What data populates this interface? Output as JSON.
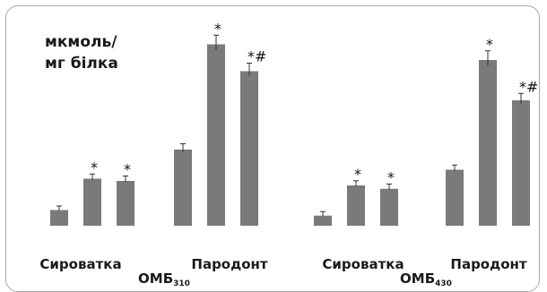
{
  "chart_data": {
    "type": "bar",
    "unit_label": [
      "мкмоль/",
      "мг білка"
    ],
    "series_groups": [
      {
        "group_label": "ОМБ",
        "group_subscript": "310",
        "categories": [
          {
            "label": "Сироватка",
            "values": [
              0.7,
              2.1,
              2.0
            ],
            "errors": [
              0.02,
              0.05,
              0.06
            ],
            "markers": [
              "",
              "*",
              "*"
            ]
          },
          {
            "label": "Пародонт",
            "values": [
              3.4,
              8.1,
              6.9
            ],
            "errors": [
              0.1,
              0.25,
              0.2
            ],
            "markers": [
              "",
              "*",
              "*#"
            ]
          }
        ]
      },
      {
        "group_label": "ОМБ",
        "group_subscript": "430",
        "categories": [
          {
            "label": "Сироватка",
            "values": [
              0.45,
              1.8,
              1.65
            ],
            "errors": [
              0.02,
              0.05,
              0.05
            ],
            "markers": [
              "",
              "*",
              "*"
            ]
          },
          {
            "label": "Пародонт",
            "values": [
              2.5,
              7.4,
              5.6
            ],
            "errors": [
              0.05,
              0.25,
              0.15
            ],
            "markers": [
              "",
              "*",
              "*#"
            ]
          }
        ]
      }
    ],
    "ylim": [
      0,
      9
    ],
    "grid": false,
    "bar_color": "#7a7a7a"
  }
}
